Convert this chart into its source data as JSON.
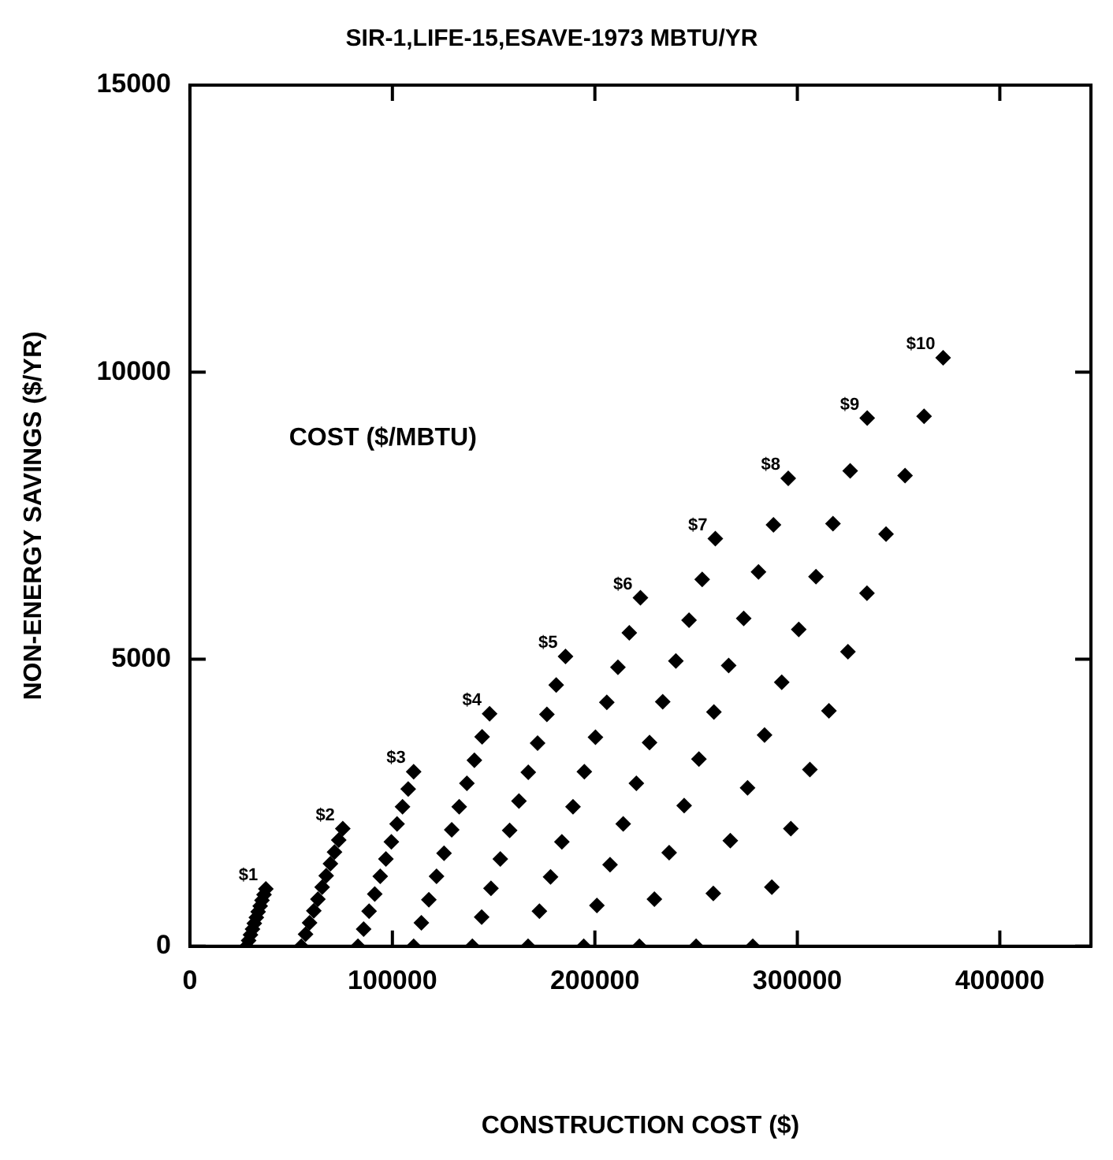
{
  "chart_data": {
    "type": "scatter",
    "title": "SIR-1,LIFE-15,ESAVE-1973 MBTU/YR",
    "xlabel": "CONSTRUCTION COST ($)",
    "ylabel": "NON-ENERGY SAVINGS ($/YR)",
    "annotations": [
      "COST ($/MBTU)"
    ],
    "xlim": [
      0,
      445000
    ],
    "ylim": [
      0,
      15000
    ],
    "xticks": [
      0,
      100000,
      200000,
      300000,
      400000
    ],
    "yticks": [
      0,
      5000,
      10000,
      15000
    ],
    "grid": false,
    "legend": false,
    "marker": "diamond",
    "series": [
      {
        "name": "$1",
        "color": "#000000",
        "x": [
          28000,
          29000,
          29900,
          30900,
          31800,
          32800,
          33700,
          34700,
          35600,
          36600,
          37500
        ],
        "values": [
          0,
          100,
          200,
          300,
          400,
          500,
          600,
          700,
          800,
          900,
          1000
        ]
      },
      {
        "name": "$2",
        "color": "#000000",
        "x": [
          55000,
          57100,
          59100,
          61200,
          63200,
          65300,
          67300,
          69400,
          71400,
          73500,
          75500
        ],
        "values": [
          0,
          210,
          410,
          620,
          820,
          1030,
          1230,
          1440,
          1640,
          1850,
          2050
        ]
      },
      {
        "name": "$3",
        "color": "#000000",
        "x": [
          83000,
          85800,
          88500,
          91300,
          94000,
          96800,
          99500,
          102300,
          105000,
          107800,
          110500
        ],
        "values": [
          0,
          300,
          610,
          910,
          1220,
          1520,
          1820,
          2130,
          2430,
          2740,
          3040
        ]
      },
      {
        "name": "$4",
        "color": "#000000",
        "x": [
          110500,
          114300,
          118000,
          121800,
          125500,
          129300,
          133000,
          136800,
          140500,
          144300,
          148000
        ],
        "values": [
          0,
          410,
          810,
          1220,
          1620,
          2030,
          2430,
          2840,
          3240,
          3650,
          4050
        ]
      },
      {
        "name": "$5",
        "color": "#000000",
        "x": [
          139500,
          144100,
          148700,
          153300,
          157900,
          162500,
          167100,
          171700,
          176300,
          180900,
          185500
        ],
        "values": [
          0,
          510,
          1010,
          1520,
          2020,
          2530,
          3030,
          3540,
          4040,
          4550,
          5050
        ]
      },
      {
        "name": "$6",
        "color": "#000000",
        "x": [
          167000,
          172600,
          178100,
          183700,
          189200,
          194800,
          200300,
          205900,
          211400,
          217000,
          222500
        ],
        "values": [
          0,
          610,
          1210,
          1820,
          2430,
          3040,
          3640,
          4250,
          4860,
          5460,
          6070
        ]
      },
      {
        "name": "$7",
        "color": "#000000",
        "x": [
          194500,
          201000,
          207500,
          214000,
          220500,
          227000,
          233500,
          240000,
          246500,
          253000,
          259500
        ],
        "values": [
          0,
          710,
          1420,
          2130,
          2840,
          3550,
          4260,
          4970,
          5680,
          6390,
          7100
        ]
      },
      {
        "name": "$8",
        "color": "#000000",
        "x": [
          222000,
          229400,
          236700,
          244100,
          251400,
          258800,
          266100,
          273500,
          280800,
          288200,
          295500
        ],
        "values": [
          0,
          820,
          1630,
          2450,
          3260,
          4080,
          4890,
          5710,
          6520,
          7340,
          8150
        ]
      },
      {
        "name": "$9",
        "color": "#000000",
        "x": [
          250000,
          258500,
          266900,
          275400,
          283800,
          292300,
          300700,
          309200,
          317600,
          326100,
          334500
        ],
        "values": [
          0,
          920,
          1840,
          2760,
          3680,
          4600,
          5520,
          6440,
          7360,
          8280,
          9200
        ]
      },
      {
        "name": "$10",
        "color": "#000000",
        "x": [
          278000,
          287400,
          296800,
          306200,
          315600,
          325000,
          334400,
          343800,
          353200,
          362600,
          372000
        ],
        "values": [
          0,
          1030,
          2050,
          3080,
          4100,
          5130,
          6150,
          7180,
          8200,
          9230,
          10250
        ]
      }
    ]
  }
}
